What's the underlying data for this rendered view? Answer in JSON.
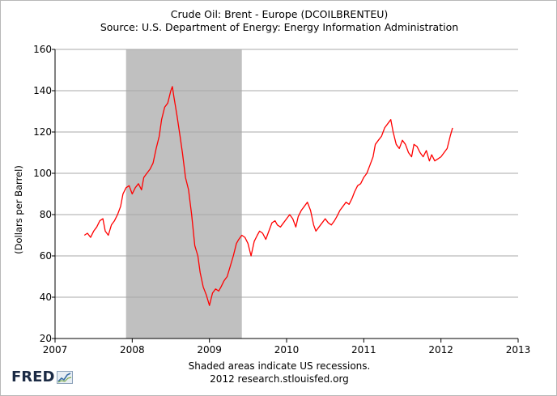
{
  "chart_data": {
    "type": "line",
    "title": "Crude Oil: Brent - Europe (DCOILBRENTEU)",
    "subtitle": "Source: U.S. Department of Energy: Energy Information Administration",
    "ylabel": "(Dollars per Barrel)",
    "xlabel": "",
    "xlim": [
      2007,
      2013
    ],
    "ylim": [
      20,
      160
    ],
    "x_ticks": [
      "2007",
      "2008",
      "2009",
      "2010",
      "2011",
      "2012",
      "2013"
    ],
    "y_ticks": [
      "20",
      "40",
      "60",
      "80",
      "100",
      "120",
      "140",
      "160"
    ],
    "grid": "horizontal",
    "series_color": "#ff0000",
    "recession_shading": {
      "start": 2007.92,
      "end": 2009.42,
      "color": "#c0c0c0"
    },
    "series": [
      {
        "x": [
          2007.38,
          2007.42,
          2007.46,
          2007.5,
          2007.54,
          2007.58,
          2007.62,
          2007.65,
          2007.69,
          2007.73,
          2007.77,
          2007.81,
          2007.85,
          2007.88,
          2007.92,
          2007.96,
          2008.0,
          2008.04,
          2008.08,
          2008.12,
          2008.15,
          2008.19,
          2008.23,
          2008.27,
          2008.31,
          2008.35,
          2008.38,
          2008.42,
          2008.46,
          2008.5,
          2008.52,
          2008.54,
          2008.58,
          2008.62,
          2008.65,
          2008.69,
          2008.73,
          2008.77,
          2008.81,
          2008.85,
          2008.88,
          2008.92,
          2008.96,
          2009.0,
          2009.04,
          2009.08,
          2009.12,
          2009.15,
          2009.19,
          2009.23,
          2009.27,
          2009.31,
          2009.35,
          2009.38,
          2009.42,
          2009.46,
          2009.5,
          2009.54,
          2009.58,
          2009.62,
          2009.65,
          2009.69,
          2009.73,
          2009.77,
          2009.81,
          2009.85,
          2009.88,
          2009.92,
          2009.96,
          2010.0,
          2010.04,
          2010.08,
          2010.12,
          2010.15,
          2010.19,
          2010.23,
          2010.27,
          2010.31,
          2010.35,
          2010.38,
          2010.42,
          2010.46,
          2010.5,
          2010.54,
          2010.58,
          2010.62,
          2010.65,
          2010.69,
          2010.73,
          2010.77,
          2010.81,
          2010.85,
          2010.88,
          2010.92,
          2010.96,
          2011.0,
          2011.04,
          2011.08,
          2011.12,
          2011.15,
          2011.19,
          2011.23,
          2011.27,
          2011.31,
          2011.35,
          2011.38,
          2011.42,
          2011.46,
          2011.5,
          2011.54,
          2011.58,
          2011.62,
          2011.65,
          2011.69,
          2011.73,
          2011.77,
          2011.81,
          2011.85,
          2011.88,
          2011.92,
          2011.96,
          2012.0,
          2012.04,
          2012.08,
          2012.12,
          2012.15
        ],
        "values": [
          70,
          71,
          69,
          72,
          74,
          77,
          78,
          72,
          70,
          75,
          77,
          80,
          84,
          90,
          93,
          94,
          90,
          93,
          95,
          92,
          98,
          100,
          102,
          105,
          112,
          118,
          126,
          132,
          134,
          140,
          142,
          137,
          128,
          118,
          110,
          98,
          92,
          80,
          65,
          60,
          52,
          45,
          41,
          36,
          42,
          44,
          43,
          45,
          48,
          50,
          55,
          60,
          66,
          68,
          70,
          69,
          66,
          60,
          67,
          70,
          72,
          71,
          68,
          72,
          76,
          77,
          75,
          74,
          76,
          78,
          80,
          78,
          74,
          79,
          82,
          84,
          86,
          82,
          75,
          72,
          74,
          76,
          78,
          76,
          75,
          77,
          79,
          82,
          84,
          86,
          85,
          88,
          91,
          94,
          95,
          98,
          100,
          104,
          108,
          114,
          116,
          118,
          122,
          124,
          126,
          120,
          114,
          112,
          116,
          114,
          110,
          108,
          114,
          113,
          110,
          108,
          111,
          106,
          109,
          106,
          107,
          108,
          110,
          112,
          118,
          122
        ]
      }
    ]
  },
  "footer": {
    "note": "Shaded areas indicate US recessions.",
    "credit": "2012 research.stlouisfed.org"
  },
  "logo": {
    "text": "FRED",
    "icon": "fred-graph-icon"
  }
}
